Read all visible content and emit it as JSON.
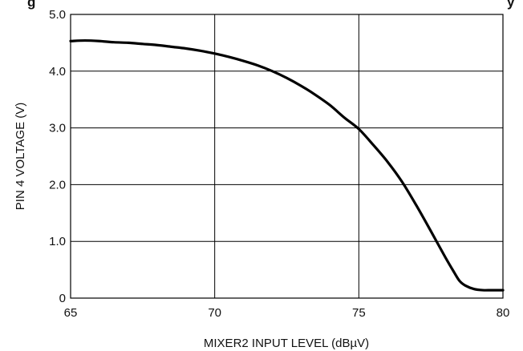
{
  "chart_data": {
    "type": "line",
    "title_fragment": "g",
    "title_fragment_right": "y",
    "xlabel": "MIXER2 INPUT LEVEL (dBµV)",
    "ylabel": "PIN 4 VOLTAGE (V)",
    "xlim": [
      65,
      80
    ],
    "ylim": [
      0,
      5
    ],
    "x_ticks": [
      "65",
      "70",
      "75",
      "80"
    ],
    "y_ticks": [
      "0",
      "1.0",
      "2.0",
      "3.0",
      "4.0",
      "5.0"
    ],
    "grid": true,
    "colors": {
      "line": "#000000",
      "grid": "#000000"
    },
    "series": [
      {
        "x": [
          65.0,
          65.5,
          66.0,
          66.5,
          67.0,
          67.5,
          68.0,
          68.5,
          69.0,
          69.5,
          70.0,
          70.5,
          71.0,
          71.5,
          72.0,
          72.5,
          73.0,
          73.5,
          74.0,
          74.5,
          75.0,
          75.5,
          76.0,
          76.5,
          77.0,
          77.5,
          78.0,
          78.3,
          78.5,
          78.7,
          79.0,
          79.3,
          79.6,
          80.0
        ],
        "y": [
          4.53,
          4.54,
          4.53,
          4.51,
          4.5,
          4.48,
          4.46,
          4.43,
          4.4,
          4.36,
          4.31,
          4.25,
          4.18,
          4.1,
          4.0,
          3.88,
          3.74,
          3.58,
          3.4,
          3.18,
          2.98,
          2.7,
          2.4,
          2.05,
          1.63,
          1.18,
          0.72,
          0.46,
          0.3,
          0.22,
          0.16,
          0.14,
          0.14,
          0.14
        ]
      }
    ]
  }
}
